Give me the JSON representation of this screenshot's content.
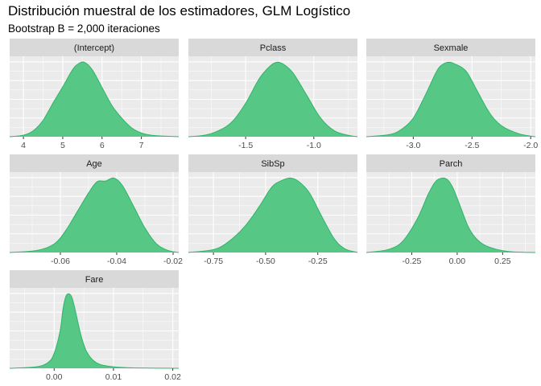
{
  "title": "Distribución muestral de los estimadores, GLM Logístico",
  "subtitle": "Bootstrap B = 2,000 iteraciones",
  "colors": {
    "fill": "#57c785",
    "line": "#2fb46a",
    "panel_bg": "#ebebeb",
    "strip_bg": "#d9d9d9",
    "grid": "#ffffff"
  },
  "chart_data": [
    {
      "type": "area",
      "title": "(Intercept)",
      "xlim": [
        3.65,
        7.95
      ],
      "xticks": [
        4,
        5,
        6,
        7
      ],
      "xtick_labels": [
        "4",
        "5",
        "6",
        "7"
      ],
      "x": [
        3.65,
        4.0,
        4.25,
        4.5,
        4.75,
        5.0,
        5.25,
        5.4,
        5.55,
        5.75,
        6.0,
        6.25,
        6.5,
        6.75,
        7.0,
        7.25,
        7.5,
        7.95
      ],
      "density": [
        0.0,
        0.02,
        0.08,
        0.22,
        0.45,
        0.67,
        0.9,
        0.98,
        1.0,
        0.9,
        0.66,
        0.42,
        0.25,
        0.12,
        0.05,
        0.02,
        0.01,
        0.0
      ]
    },
    {
      "type": "area",
      "title": "Pclass",
      "xlim": [
        -1.92,
        -0.68
      ],
      "xticks": [
        -1.5,
        -1.0
      ],
      "xtick_labels": [
        "-1.5",
        "-1.0"
      ],
      "x": [
        -1.92,
        -1.8,
        -1.7,
        -1.6,
        -1.5,
        -1.4,
        -1.32,
        -1.27,
        -1.22,
        -1.15,
        -1.05,
        -0.95,
        -0.85,
        -0.75,
        -0.68
      ],
      "density": [
        0.0,
        0.02,
        0.08,
        0.2,
        0.45,
        0.78,
        0.95,
        1.0,
        0.97,
        0.85,
        0.55,
        0.25,
        0.08,
        0.02,
        0.0
      ]
    },
    {
      "type": "area",
      "title": "Sexmale",
      "xlim": [
        -3.4,
        -1.96
      ],
      "xticks": [
        -3.0,
        -2.5,
        -2.0
      ],
      "xtick_labels": [
        "-3.0",
        "-2.5",
        "-2.0"
      ],
      "x": [
        -3.4,
        -3.2,
        -3.1,
        -3.0,
        -2.9,
        -2.8,
        -2.75,
        -2.7,
        -2.65,
        -2.55,
        -2.45,
        -2.35,
        -2.25,
        -2.1,
        -1.96
      ],
      "density": [
        0.0,
        0.03,
        0.1,
        0.25,
        0.55,
        0.88,
        0.97,
        1.0,
        0.98,
        0.88,
        0.6,
        0.32,
        0.15,
        0.04,
        0.0
      ]
    },
    {
      "type": "area",
      "title": "Age",
      "xlim": [
        -0.078,
        -0.018
      ],
      "xticks": [
        -0.06,
        -0.04,
        -0.02
      ],
      "xtick_labels": [
        "-0.06",
        "-0.04",
        "-0.02"
      ],
      "x": [
        -0.078,
        -0.068,
        -0.062,
        -0.058,
        -0.054,
        -0.05,
        -0.047,
        -0.044,
        -0.041,
        -0.038,
        -0.034,
        -0.03,
        -0.026,
        -0.022,
        -0.018
      ],
      "density": [
        0.0,
        0.03,
        0.12,
        0.3,
        0.55,
        0.8,
        0.95,
        0.96,
        1.0,
        0.9,
        0.62,
        0.33,
        0.12,
        0.03,
        0.0
      ]
    },
    {
      "type": "area",
      "title": "SibSp",
      "xlim": [
        -0.87,
        -0.06
      ],
      "xticks": [
        -0.75,
        -0.5,
        -0.25
      ],
      "xtick_labels": [
        "-0.75",
        "-0.50",
        "-0.25"
      ],
      "x": [
        -0.87,
        -0.75,
        -0.68,
        -0.6,
        -0.53,
        -0.47,
        -0.42,
        -0.38,
        -0.34,
        -0.29,
        -0.23,
        -0.17,
        -0.12,
        -0.06
      ],
      "density": [
        0.0,
        0.04,
        0.14,
        0.35,
        0.62,
        0.88,
        0.97,
        1.0,
        0.95,
        0.8,
        0.48,
        0.18,
        0.05,
        0.0
      ]
    },
    {
      "type": "area",
      "title": "Parch",
      "xlim": [
        -0.5,
        0.43
      ],
      "xticks": [
        -0.25,
        0.0,
        0.25
      ],
      "xtick_labels": [
        "-0.25",
        "0.00",
        "0.25"
      ],
      "x": [
        -0.5,
        -0.38,
        -0.3,
        -0.22,
        -0.16,
        -0.12,
        -0.08,
        -0.05,
        -0.02,
        0.02,
        0.06,
        0.1,
        0.15,
        0.22,
        0.3,
        0.43
      ],
      "density": [
        0.0,
        0.04,
        0.15,
        0.45,
        0.78,
        0.95,
        1.0,
        0.97,
        0.85,
        0.6,
        0.35,
        0.2,
        0.1,
        0.04,
        0.01,
        0.0
      ]
    },
    {
      "type": "area",
      "title": "Fare",
      "xlim": [
        -0.0075,
        0.021
      ],
      "xticks": [
        0.0,
        0.01,
        0.02
      ],
      "xtick_labels": [
        "0.00",
        "0.01",
        "0.02"
      ],
      "x": [
        -0.0075,
        -0.003,
        -0.001,
        0.0,
        0.001,
        0.0015,
        0.002,
        0.0025,
        0.003,
        0.0035,
        0.0045,
        0.0055,
        0.007,
        0.009,
        0.012,
        0.016,
        0.021
      ],
      "density": [
        0.0,
        0.02,
        0.08,
        0.2,
        0.5,
        0.8,
        0.97,
        1.0,
        0.95,
        0.8,
        0.45,
        0.22,
        0.08,
        0.03,
        0.01,
        0.003,
        0.0
      ]
    }
  ]
}
